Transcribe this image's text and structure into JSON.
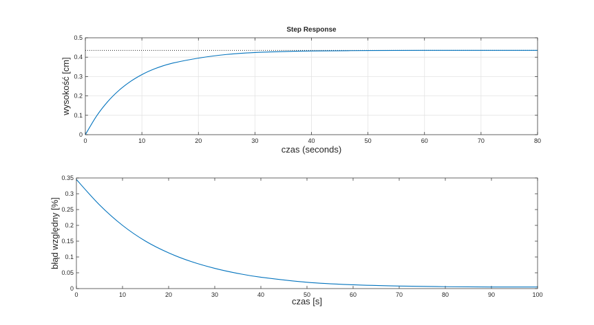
{
  "chart_data": [
    {
      "type": "line",
      "title": "Step Response",
      "xlabel": "czas  (seconds)",
      "ylabel": "wysokość [cm]",
      "xlim": [
        0,
        80
      ],
      "ylim": [
        0,
        0.5
      ],
      "xticks": [
        0,
        10,
        20,
        30,
        40,
        50,
        60,
        70,
        80
      ],
      "yticks": [
        0,
        0.1,
        0.2,
        0.3,
        0.4,
        0.5
      ],
      "xtick_labels": [
        "0",
        "10",
        "20",
        "30",
        "40",
        "50",
        "60",
        "70",
        "80"
      ],
      "ytick_labels": [
        "0",
        "0.1",
        "0.2",
        "0.3",
        "0.4",
        "0.5"
      ],
      "grid": true,
      "steady_state_value": 0.435,
      "series": [
        {
          "x": [
            0,
            2,
            4,
            6,
            8,
            10,
            12,
            15,
            20,
            25,
            30,
            35,
            40,
            50,
            60,
            70,
            80
          ],
          "values": [
            0,
            0.097,
            0.172,
            0.23,
            0.275,
            0.31,
            0.337,
            0.366,
            0.395,
            0.414,
            0.424,
            0.429,
            0.432,
            0.434,
            0.435,
            0.435,
            0.435
          ],
          "color": "#0072bd"
        }
      ]
    },
    {
      "type": "line",
      "title": "",
      "xlabel": "czas [s]",
      "ylabel": "błąd względny [%]",
      "xlim": [
        0,
        100
      ],
      "ylim": [
        0,
        0.35
      ],
      "xticks": [
        0,
        10,
        20,
        30,
        40,
        50,
        60,
        70,
        80,
        90,
        100
      ],
      "yticks": [
        0,
        0.05,
        0.1,
        0.15,
        0.2,
        0.25,
        0.3,
        0.35
      ],
      "xtick_labels": [
        "0",
        "10",
        "20",
        "30",
        "40",
        "50",
        "60",
        "70",
        "80",
        "90",
        "100"
      ],
      "ytick_labels": [
        "0",
        "0.05",
        "0.1",
        "0.15",
        "0.2",
        "0.25",
        "0.3",
        "0.35"
      ],
      "grid": false,
      "series": [
        {
          "x": [
            0,
            5,
            10,
            15,
            20,
            25,
            30,
            35,
            40,
            50,
            60,
            70,
            80,
            90,
            100
          ],
          "values": [
            0.345,
            0.265,
            0.2,
            0.15,
            0.113,
            0.085,
            0.064,
            0.048,
            0.036,
            0.02,
            0.012,
            0.008,
            0.006,
            0.005,
            0.005
          ],
          "color": "#0072bd"
        }
      ]
    }
  ]
}
